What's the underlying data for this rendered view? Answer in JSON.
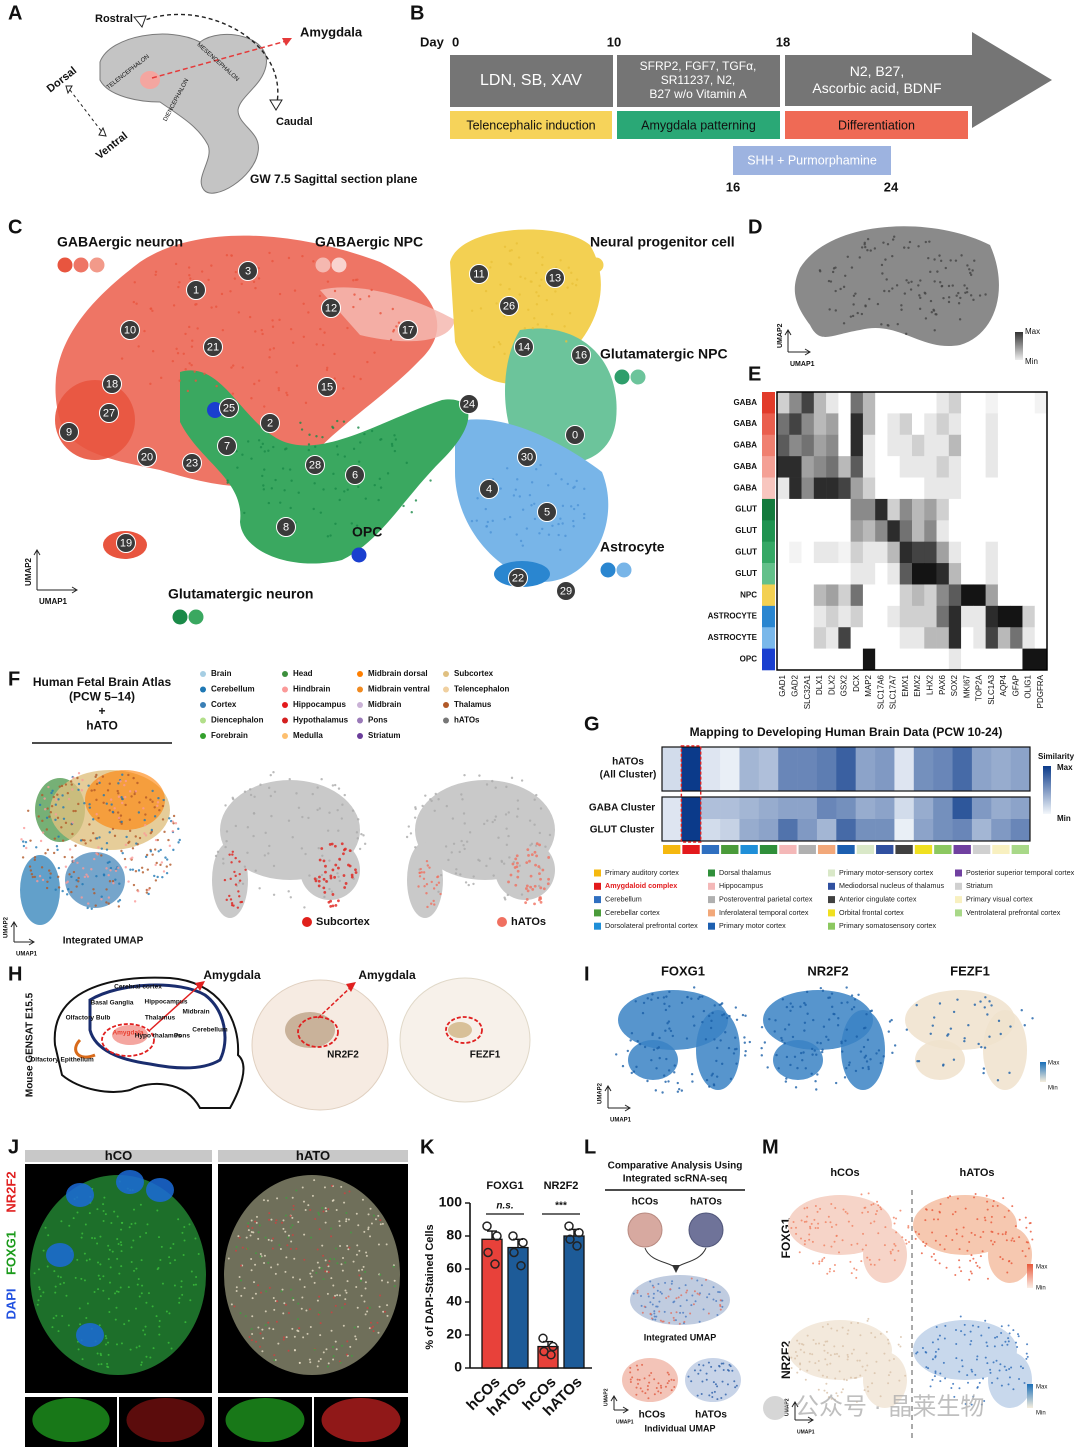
{
  "panel_a": {
    "letter": "A",
    "rostral": "Rostral",
    "amygdala": "Amygdala",
    "dorsal": "Dorsal",
    "ventral": "Ventral",
    "caudal": "Caudal",
    "telencephalon": "TELENCEPHALON",
    "mesencephalon": "MESENCEPHALON",
    "diencephalon": "DIENCEPHALON",
    "caption": "GW 7.5 Sagittal section plane"
  },
  "panel_b": {
    "letter": "B",
    "day": "Day",
    "days_top": [
      0,
      10,
      18
    ],
    "days_bottom": [
      16,
      24
    ],
    "media": [
      [
        "LDN, SB, XAV"
      ],
      [
        "SFRP2, FGF7, TGFα,",
        "SR11237, N2,",
        "B27 w/o Vitamin A"
      ],
      [
        "N2, B27,",
        "Ascorbic acid, BDNF"
      ]
    ],
    "phases": [
      {
        "name": "Telencephalic induction",
        "color": "#f6d35a"
      },
      {
        "name": "Amygdala patterning",
        "color": "#2aa876"
      },
      {
        "name": "Differentiation",
        "color": "#ef6a55"
      }
    ],
    "shh": "SHH + Purmorphamine"
  },
  "panel_c": {
    "letter": "C",
    "cell_types": [
      {
        "name": "GABAergic neuron",
        "colors": [
          "#e8553f",
          "#ee7565",
          "#f29a8a"
        ]
      },
      {
        "name": "GABAergic NPC",
        "colors": [
          "#f5b8b0",
          "#f9d3cf"
        ]
      },
      {
        "name": "Neural progenitor cell",
        "colors": [
          "#f3d052"
        ]
      },
      {
        "name": "Glutamatergic NPC",
        "colors": [
          "#2e9e6b",
          "#6cc49b"
        ]
      },
      {
        "name": "OPC",
        "colors": [
          "#1a3fcf"
        ]
      },
      {
        "name": "Astrocyte",
        "colors": [
          "#2a86d0",
          "#78b5e8"
        ]
      },
      {
        "name": "Glutamatergic neuron",
        "colors": [
          "#1a8a48",
          "#3aa860"
        ]
      }
    ],
    "clusters": [
      0,
      1,
      2,
      3,
      4,
      5,
      6,
      7,
      8,
      9,
      10,
      11,
      12,
      13,
      14,
      15,
      16,
      17,
      18,
      19,
      20,
      21,
      22,
      23,
      24,
      25,
      26,
      27,
      28,
      29,
      30
    ],
    "umap1": "UMAP1",
    "umap2": "UMAP2"
  },
  "panel_d": {
    "letter": "D",
    "max": "Max",
    "min": "Min",
    "umap1": "UMAP1",
    "umap2": "UMAP2"
  },
  "panel_e": {
    "letter": "E",
    "rows": [
      {
        "label": "GABA",
        "color": "#e23b2a"
      },
      {
        "label": "GABA",
        "color": "#ea5f4e"
      },
      {
        "label": "GABA",
        "color": "#f08070"
      },
      {
        "label": "GABA",
        "color": "#f4a095"
      },
      {
        "label": "GABA",
        "color": "#f8c6bf"
      },
      {
        "label": "GLUT",
        "color": "#137a3c"
      },
      {
        "label": "GLUT",
        "color": "#1f9350"
      },
      {
        "label": "GLUT",
        "color": "#35a865"
      },
      {
        "label": "GLUT",
        "color": "#63c08a"
      },
      {
        "label": "NPC",
        "color": "#f3d052"
      },
      {
        "label": "ASTROCYTE",
        "color": "#2a86d0"
      },
      {
        "label": "ASTROCYTE",
        "color": "#7ab8ea"
      },
      {
        "label": "OPC",
        "color": "#1a3fcf"
      }
    ],
    "genes": [
      "GAD1",
      "GAD2",
      "SLC32A1",
      "DLX1",
      "DLX2",
      "GSX2",
      "DCX",
      "MAP2",
      "SLC17A6",
      "SLC17A7",
      "EMX1",
      "EMX2",
      "LHX2",
      "PAX6",
      "SOX2",
      "MKI67",
      "TOP2A",
      "SLC1A3",
      "AQP4",
      "GFAP",
      "OLIG1",
      "PDGFRA"
    ],
    "values": [
      [
        0.2,
        0.5,
        0.8,
        0.3,
        0.1,
        0,
        0.6,
        0.3,
        0,
        0,
        0,
        0,
        0,
        0.1,
        0.2,
        0,
        0,
        0.05,
        0,
        0,
        0,
        0.05
      ],
      [
        0.6,
        0.8,
        0.5,
        0.3,
        0.4,
        0,
        0.9,
        0.3,
        0,
        0.1,
        0.2,
        0,
        0.1,
        0.2,
        0.1,
        0,
        0,
        0.1,
        0,
        0,
        0,
        0
      ],
      [
        0.7,
        0.5,
        0.6,
        0.4,
        0.5,
        0,
        0.9,
        0.1,
        0,
        0.1,
        0.1,
        0.2,
        0.1,
        0.1,
        0.3,
        0,
        0,
        0.1,
        0,
        0,
        0,
        0
      ],
      [
        0.9,
        0.9,
        0.4,
        0.5,
        0.6,
        0.3,
        0.7,
        0.1,
        0,
        0,
        0.1,
        0.1,
        0.1,
        0.2,
        0.1,
        0,
        0,
        0.1,
        0,
        0,
        0,
        0
      ],
      [
        0.1,
        0.9,
        0.5,
        0.9,
        0.9,
        0.8,
        0.4,
        0.2,
        0,
        0,
        0,
        0,
        0.1,
        0.1,
        0.1,
        0,
        0,
        0,
        0,
        0,
        0,
        0
      ],
      [
        0,
        0,
        0,
        0,
        0,
        0,
        0.5,
        0.5,
        0.9,
        0.2,
        0.5,
        0.3,
        0.4,
        0.2,
        0,
        0,
        0,
        0,
        0,
        0,
        0,
        0
      ],
      [
        0,
        0,
        0,
        0,
        0,
        0,
        0.4,
        0.3,
        0.5,
        0.9,
        0.6,
        0.3,
        0.5,
        0.1,
        0,
        0,
        0,
        0,
        0,
        0,
        0,
        0
      ],
      [
        0,
        0.05,
        0,
        0.1,
        0.1,
        0.05,
        0.2,
        0.1,
        0.1,
        0.3,
        0.9,
        0.8,
        0.8,
        0.4,
        0.1,
        0,
        0,
        0.1,
        0,
        0,
        0,
        0
      ],
      [
        0,
        0,
        0,
        0,
        0,
        0,
        0.1,
        0.1,
        0,
        0.1,
        0.7,
        1,
        1,
        0.9,
        0.3,
        0,
        0,
        0.1,
        0,
        0,
        0,
        0
      ],
      [
        0,
        0,
        0,
        0.3,
        0.4,
        0.2,
        0.6,
        0,
        0,
        0,
        0.2,
        0.3,
        0.2,
        0.5,
        0.7,
        1,
        1,
        0.4,
        0,
        0,
        0,
        0
      ],
      [
        0,
        0,
        0,
        0.1,
        0.2,
        0.1,
        0.2,
        0,
        0,
        0.1,
        0.2,
        0.2,
        0.2,
        0.6,
        0.9,
        0.1,
        0.1,
        0.9,
        1,
        1,
        0.2,
        0
      ],
      [
        0,
        0,
        0,
        0.2,
        0.1,
        0.8,
        0,
        0,
        0,
        0,
        0.1,
        0.1,
        0.3,
        0.3,
        0.9,
        0,
        0.1,
        0.8,
        0.3,
        0.6,
        0.1,
        0
      ],
      [
        0,
        0,
        0,
        0,
        0,
        0,
        0,
        1,
        0,
        0,
        0,
        0,
        0,
        0,
        0.1,
        0,
        0,
        0,
        0,
        0,
        1,
        1
      ]
    ]
  },
  "panel_f": {
    "letter": "F",
    "title_lines": [
      "Human Fetal Brain Atlas",
      "(PCW 5–14)",
      "+",
      "hATO"
    ],
    "legend": [
      {
        "name": "Brain",
        "color": "#a6cee3"
      },
      {
        "name": "Cerebellum",
        "color": "#1f78b4"
      },
      {
        "name": "Cortex",
        "color": "#3a7fb5"
      },
      {
        "name": "Diencephalon",
        "color": "#b2df8a"
      },
      {
        "name": "Forebrain",
        "color": "#33a02c"
      },
      {
        "name": "Head",
        "color": "#3c8f3c"
      },
      {
        "name": "Hindbrain",
        "color": "#fb9a99"
      },
      {
        "name": "Hippocampus",
        "color": "#e31a1c"
      },
      {
        "name": "Hypothalamus",
        "color": "#d42020"
      },
      {
        "name": "Medulla",
        "color": "#fdbf6f"
      },
      {
        "name": "Midbrain dorsal",
        "color": "#ff7f00"
      },
      {
        "name": "Midbrain ventral",
        "color": "#f08a20"
      },
      {
        "name": "Midbrain",
        "color": "#cab2d6"
      },
      {
        "name": "Pons",
        "color": "#9a7ab8"
      },
      {
        "name": "Striatum",
        "color": "#6a3d9a"
      },
      {
        "name": "Subcortex",
        "color": "#e0c080"
      },
      {
        "name": "Telencephalon",
        "color": "#f0d0a0"
      },
      {
        "name": "Thalamus",
        "color": "#b15928"
      },
      {
        "name": "hATOs",
        "color": "#777777"
      }
    ],
    "integrated": "Integrated UMAP",
    "highlights": [
      {
        "name": "Subcortex",
        "color": "#e0201b"
      },
      {
        "name": "hATOs",
        "color": "#f07060"
      }
    ],
    "umap1": "UMAP1",
    "umap2": "UMAP2"
  },
  "panel_g": {
    "letter": "G",
    "title": "Mapping to Developing Human Brain Data (PCW 10-24)",
    "rows": [
      [
        "hATOs",
        "(All Cluster)"
      ],
      [
        "GABA Cluster"
      ],
      [
        "GLUT Cluster"
      ]
    ],
    "values": [
      [
        0.15,
        1,
        0.1,
        0.05,
        0.35,
        0.3,
        0.6,
        0.6,
        0.65,
        0.8,
        0.45,
        0.5,
        0.1,
        0.55,
        0.6,
        0.75,
        0.45,
        0.4,
        0.45
      ],
      [
        0.1,
        1,
        0.3,
        0.3,
        0.35,
        0.4,
        0.45,
        0.45,
        0.6,
        0.55,
        0.4,
        0.45,
        0.15,
        0.4,
        0.55,
        0.85,
        0.5,
        0.4,
        0.45
      ],
      [
        0.1,
        1,
        0.15,
        0.2,
        0.4,
        0.45,
        0.7,
        0.5,
        0.35,
        0.75,
        0.55,
        0.55,
        0.05,
        0.45,
        0.55,
        0.6,
        0.35,
        0.5,
        0.6
      ]
    ],
    "similarity": "Similarity",
    "max": "Max",
    "min": "Min",
    "regions": [
      {
        "name": "Primary auditory cortex",
        "color": "#f5b80f"
      },
      {
        "name": "Amygdaloid complex",
        "color": "#e31a1c",
        "label_color": "#e31a1c"
      },
      {
        "name": "Cerebellum",
        "color": "#2f6fc0"
      },
      {
        "name": "Cerebellar cortex",
        "color": "#4a9b3a"
      },
      {
        "name": "Dorsolateral prefrontal cortex",
        "color": "#1f8fd8"
      },
      {
        "name": "Dorsal thalamus",
        "color": "#2f8f3a"
      },
      {
        "name": "Hippocampus",
        "color": "#f4b8b8"
      },
      {
        "name": "Posteroventral parietal cortex",
        "color": "#b0b0b0"
      },
      {
        "name": "Inferolateral temporal cortex",
        "color": "#f2a87a"
      },
      {
        "name": "Primary motor cortex",
        "color": "#1c5fb0"
      },
      {
        "name": "Primary motor-sensory cortex",
        "color": "#d9e8c8"
      },
      {
        "name": "Mediodorsal nucleus of thalamus",
        "color": "#3050a0"
      },
      {
        "name": "Anterior cingulate cortex",
        "color": "#404040"
      },
      {
        "name": "Orbital frontal cortex",
        "color": "#f0e020"
      },
      {
        "name": "Primary somatosensory cortex",
        "color": "#8cc860"
      },
      {
        "name": "Posterior superior temporal cortex",
        "color": "#7040a0"
      },
      {
        "name": "Striatum",
        "color": "#d0d0d0"
      },
      {
        "name": "Primary visual cortex",
        "color": "#f8f0c0"
      },
      {
        "name": "Ventrolateral prefrontal cortex",
        "color": "#a8d888"
      }
    ]
  },
  "panel_h": {
    "letter": "H",
    "side": "Mouse GENSAT E15.5",
    "amygdala": "Amygdala",
    "regions": [
      "Cerebral cortex",
      "Basal Ganglia",
      "Hippocampus",
      "Olfactory Bulb",
      "Amygdala",
      "Thalamus",
      "Hypo thalamus",
      "Midbrain",
      "Cerebellum",
      "Pons",
      "Olfactory Epithelium"
    ],
    "genes": [
      "NR2F2",
      "FEZF1"
    ]
  },
  "panel_i": {
    "letter": "I",
    "genes": [
      "FOXG1",
      "NR2F2",
      "FEZF1"
    ],
    "max": "Max",
    "min": "Min",
    "umap1": "UMAP1",
    "umap2": "UMAP2"
  },
  "panel_j": {
    "letter": "J",
    "groups": [
      "hCO",
      "hATO"
    ],
    "stains": [
      {
        "name": "DAPI",
        "color": "#2050e0"
      },
      {
        "name": "FOXG1",
        "color": "#1a9a1a"
      },
      {
        "name": "NR2F2",
        "color": "#e02020"
      }
    ]
  },
  "panel_k": {
    "letter": "K"
  },
  "chart_data": {
    "type": "bar",
    "groups": [
      "FOXG1",
      "NR2F2"
    ],
    "categories": [
      "hCOs",
      "hATOs",
      "hCOs",
      "hATOs"
    ],
    "values": [
      78,
      73,
      13,
      80
    ],
    "errors": [
      5,
      5,
      3,
      4
    ],
    "points": [
      [
        86,
        80,
        70,
        63
      ],
      [
        80,
        76,
        70,
        62
      ],
      [
        18,
        13,
        10,
        8
      ],
      [
        86,
        82,
        78,
        74
      ]
    ],
    "colors": [
      "#e8413a",
      "#1d5b98",
      "#e8413a",
      "#1d5b98"
    ],
    "significance": [
      "n.s.",
      "***"
    ],
    "ylabel": "% of DAPI-Stained Cells",
    "ylim": [
      0,
      100
    ],
    "yticks": [
      0,
      20,
      40,
      60,
      80,
      100
    ]
  },
  "panel_l": {
    "letter": "L",
    "title_lines": [
      "Comparative Analysis Using",
      "Integrated scRNA-seq"
    ],
    "samples": [
      "hCOs",
      "hATOs"
    ],
    "integrated": "Integrated UMAP",
    "individual": "Individual UMAP",
    "umap1": "UMAP1",
    "umap2": "UMAP2"
  },
  "panel_m": {
    "letter": "M",
    "samples": [
      "hCOs",
      "hATOs"
    ],
    "genes": [
      "FOXG1",
      "NR2F2"
    ],
    "max": "Max",
    "min": "Min",
    "umap1": "UMAP1",
    "umap2": "UMAP2"
  },
  "watermark": "公众号 · 晶莱生物"
}
